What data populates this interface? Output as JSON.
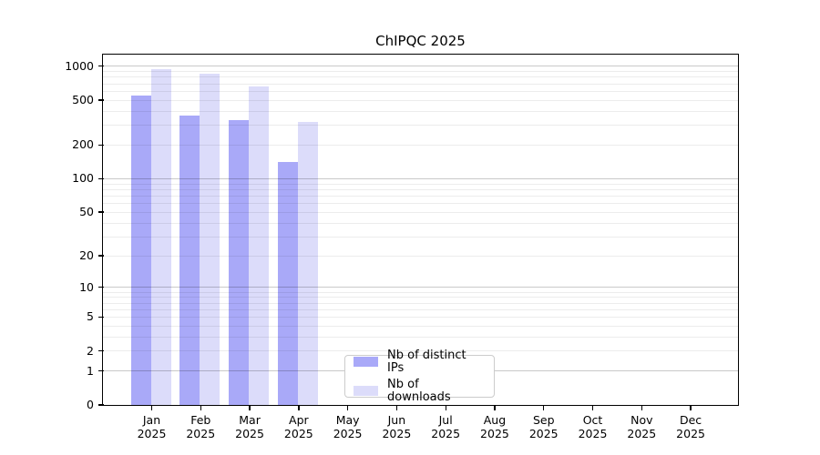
{
  "chart_data": {
    "type": "bar",
    "title": "ChIPQC 2025",
    "categories": [
      "Jan",
      "Feb",
      "Mar",
      "Apr",
      "May",
      "Jun",
      "Jul",
      "Aug",
      "Sep",
      "Oct",
      "Nov",
      "Dec"
    ],
    "x_year": "2025",
    "series": [
      {
        "name": "Nb of distinct IPs",
        "color": "#a9a9f8",
        "values": [
          540,
          360,
          330,
          140,
          null,
          null,
          null,
          null,
          null,
          null,
          null,
          null
        ]
      },
      {
        "name": "Nb of downloads",
        "color": "#dcdcfa",
        "values": [
          940,
          850,
          655,
          320,
          null,
          null,
          null,
          null,
          null,
          null,
          null,
          null
        ]
      }
    ],
    "yscale": "log1p",
    "ylim": [
      0,
      1000
    ],
    "yticks": [
      0,
      1,
      2,
      5,
      10,
      20,
      50,
      100,
      200,
      500,
      1000
    ],
    "grid": {
      "major_color": "rgba(0,0,0,0.21)",
      "minor_color": "rgba(0,0,0,0.075)",
      "major_values": [
        1,
        10,
        100,
        1000
      ]
    },
    "axis_color": "#000000",
    "background_color": "#ffffff",
    "legend_position": "inside lower-center"
  }
}
